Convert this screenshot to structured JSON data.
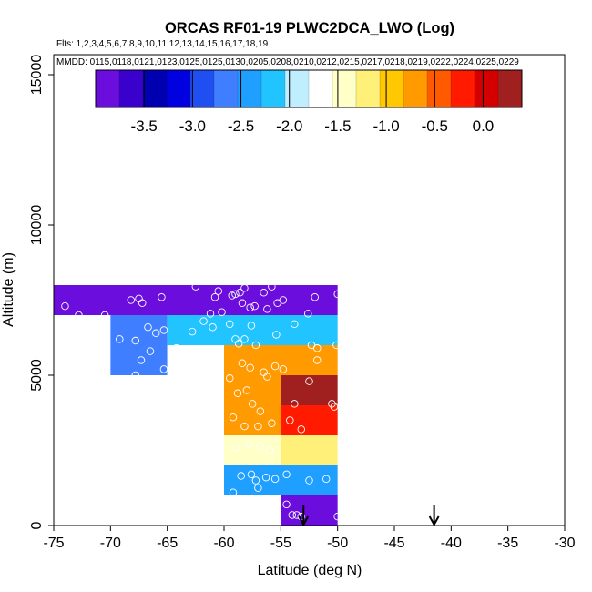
{
  "chart_data": {
    "type": "heatmap",
    "title": "ORCAS RF01-19 PLWC2DCA_LWO (Log)",
    "flights_label": "Flts: 1,2,3,4,5,6,7,8,9,10,11,12,13,14,15,16,17,18,19",
    "dates_label": "MMDD: 0115,0118,0121,0123,0125,0125,0130,0205,0208,0210,0212,0215,0217,0218,0219,0222,0224,0225,0229",
    "xlabel": "Latitude (deg N)",
    "ylabel": "Altitude (m)",
    "xlim": [
      -75,
      -30
    ],
    "ylim": [
      0,
      16000
    ],
    "x_ticks": [
      -75,
      -70,
      -65,
      -60,
      -55,
      -50,
      -45,
      -40,
      -35,
      -30
    ],
    "x_tick_labels": [
      "-75",
      "-70",
      "-65",
      "-60",
      "-55",
      "-50",
      "-45",
      "-40",
      "-35",
      "-30"
    ],
    "y_ticks": [
      0,
      5000,
      10000,
      15000
    ],
    "y_tick_labels": [
      "0",
      "5000",
      "10000",
      "15000"
    ],
    "colorbar": {
      "range": [
        -4.0,
        0.4
      ],
      "ticks": [
        -3.5,
        -3.0,
        -2.5,
        -2.0,
        -1.5,
        -1.0,
        -0.5,
        0.0
      ],
      "tick_labels": [
        "-3.5",
        "-3.0",
        "-2.5",
        "-2.0",
        "-1.5",
        "-1.0",
        "-0.5",
        "0.0"
      ],
      "colors": [
        "#6a0ddd",
        "#3a00cc",
        "#0000b0",
        "#0000e0",
        "#1f4ff0",
        "#3f7fff",
        "#1f9fff",
        "#22c4ff",
        "#bfeeff",
        "#ffffff",
        "#ffffc8",
        "#fff07a",
        "#ffc800",
        "#ff9a00",
        "#ff5a00",
        "#ff1a00",
        "#d40000",
        "#a0201f"
      ]
    },
    "cells": [
      {
        "lat0": -75,
        "lat1": -50,
        "alt0": 7000,
        "alt1": 8000,
        "value": -3.8
      },
      {
        "lat0": -70,
        "lat1": -65,
        "alt0": 5000,
        "alt1": 7000,
        "value": -2.6
      },
      {
        "lat0": -65,
        "lat1": -50,
        "alt0": 6000,
        "alt1": 7000,
        "value": -2.2
      },
      {
        "lat0": -65,
        "lat1": -60,
        "alt0": 2000,
        "alt1": 6000,
        "value": -1.6
      },
      {
        "lat0": -60,
        "lat1": -50,
        "alt0": 5000,
        "alt1": 6000,
        "value": -0.8
      },
      {
        "lat0": -60,
        "lat1": -55,
        "alt0": 3000,
        "alt1": 5000,
        "value": -0.6
      },
      {
        "lat0": -55,
        "lat1": -50,
        "alt0": 4000,
        "alt1": 5000,
        "value": 0.3
      },
      {
        "lat0": -55,
        "lat1": -50,
        "alt0": 3000,
        "alt1": 4000,
        "value": -0.3
      },
      {
        "lat0": -60,
        "lat1": -55,
        "alt0": 2000,
        "alt1": 3000,
        "value": -1.4
      },
      {
        "lat0": -55,
        "lat1": -50,
        "alt0": 2000,
        "alt1": 3000,
        "value": -1.1
      },
      {
        "lat0": -60,
        "lat1": -50,
        "alt0": 1000,
        "alt1": 2000,
        "value": -2.5
      },
      {
        "lat0": -55,
        "lat1": -50,
        "alt0": 0,
        "alt1": 1000,
        "value": -3.9
      }
    ],
    "points": [
      {
        "lat": -74.0,
        "alt": 7300
      },
      {
        "lat": -72.8,
        "alt": 7000
      },
      {
        "lat": -70.5,
        "alt": 7000
      },
      {
        "lat": -68.2,
        "alt": 7500
      },
      {
        "lat": -67.5,
        "alt": 7550
      },
      {
        "lat": -67.2,
        "alt": 7400
      },
      {
        "lat": -65.5,
        "alt": 7600
      },
      {
        "lat": -62.5,
        "alt": 7950
      },
      {
        "lat": -61.2,
        "alt": 7050
      },
      {
        "lat": -60.8,
        "alt": 7600
      },
      {
        "lat": -60.5,
        "alt": 7800
      },
      {
        "lat": -59.3,
        "alt": 7650
      },
      {
        "lat": -59.0,
        "alt": 7700
      },
      {
        "lat": -58.6,
        "alt": 7750
      },
      {
        "lat": -58.4,
        "alt": 7400
      },
      {
        "lat": -57.7,
        "alt": 7250
      },
      {
        "lat": -57.3,
        "alt": 7300
      },
      {
        "lat": -56.5,
        "alt": 7750
      },
      {
        "lat": -56.2,
        "alt": 7200
      },
      {
        "lat": -55.3,
        "alt": 7400
      },
      {
        "lat": -54.8,
        "alt": 7500
      },
      {
        "lat": -52.6,
        "alt": 7050
      },
      {
        "lat": -52.0,
        "alt": 7600
      },
      {
        "lat": -50.0,
        "alt": 7700
      },
      {
        "lat": -55.8,
        "alt": 7950
      },
      {
        "lat": -58.2,
        "alt": 7900
      },
      {
        "lat": -60.2,
        "alt": 7100
      },
      {
        "lat": -69.2,
        "alt": 6200
      },
      {
        "lat": -67.8,
        "alt": 6150
      },
      {
        "lat": -66.7,
        "alt": 6600
      },
      {
        "lat": -66.0,
        "alt": 6400
      },
      {
        "lat": -65.3,
        "alt": 6500
      },
      {
        "lat": -67.3,
        "alt": 5500
      },
      {
        "lat": -66.5,
        "alt": 5800
      },
      {
        "lat": -65.3,
        "alt": 5200
      },
      {
        "lat": -67.8,
        "alt": 5000
      },
      {
        "lat": -62.8,
        "alt": 6450
      },
      {
        "lat": -61.8,
        "alt": 6800
      },
      {
        "lat": -61.0,
        "alt": 6600
      },
      {
        "lat": -59.5,
        "alt": 6700
      },
      {
        "lat": -59.0,
        "alt": 6200
      },
      {
        "lat": -58.7,
        "alt": 6050
      },
      {
        "lat": -58.2,
        "alt": 6200
      },
      {
        "lat": -57.6,
        "alt": 6650
      },
      {
        "lat": -57.2,
        "alt": 6000
      },
      {
        "lat": -55.4,
        "alt": 6350
      },
      {
        "lat": -53.8,
        "alt": 6700
      },
      {
        "lat": -52.3,
        "alt": 6000
      },
      {
        "lat": -51.8,
        "alt": 5900
      },
      {
        "lat": -50.1,
        "alt": 6000
      },
      {
        "lat": -64.2,
        "alt": 5900
      },
      {
        "lat": -61.5,
        "alt": 5800
      },
      {
        "lat": -63.6,
        "alt": 5000
      },
      {
        "lat": -64.0,
        "alt": 4500
      },
      {
        "lat": -62.2,
        "alt": 4300
      },
      {
        "lat": -60.8,
        "alt": 3300
      },
      {
        "lat": -63.5,
        "alt": 3800
      },
      {
        "lat": -62.8,
        "alt": 2500
      },
      {
        "lat": -61.5,
        "alt": 2600
      },
      {
        "lat": -64.8,
        "alt": 3300
      },
      {
        "lat": -61.8,
        "alt": 3050
      },
      {
        "lat": -63.0,
        "alt": 4600
      },
      {
        "lat": -61.2,
        "alt": 4550
      },
      {
        "lat": -58.4,
        "alt": 5400
      },
      {
        "lat": -57.7,
        "alt": 5250
      },
      {
        "lat": -56.5,
        "alt": 5100
      },
      {
        "lat": -56.2,
        "alt": 4950
      },
      {
        "lat": -55.5,
        "alt": 5300
      },
      {
        "lat": -54.8,
        "alt": 5200
      },
      {
        "lat": -59.5,
        "alt": 4900
      },
      {
        "lat": -58.8,
        "alt": 4400
      },
      {
        "lat": -58.0,
        "alt": 4500
      },
      {
        "lat": -57.5,
        "alt": 4050
      },
      {
        "lat": -56.8,
        "alt": 3800
      },
      {
        "lat": -59.2,
        "alt": 3600
      },
      {
        "lat": -58.2,
        "alt": 3300
      },
      {
        "lat": -57.0,
        "alt": 3300
      },
      {
        "lat": -55.8,
        "alt": 3400
      },
      {
        "lat": -54.2,
        "alt": 3500
      },
      {
        "lat": -53.2,
        "alt": 3200
      },
      {
        "lat": -52.5,
        "alt": 4800
      },
      {
        "lat": -51.8,
        "alt": 5500
      },
      {
        "lat": -50.5,
        "alt": 4050
      },
      {
        "lat": -50.3,
        "alt": 3950
      },
      {
        "lat": -53.8,
        "alt": 4050
      },
      {
        "lat": -59.0,
        "alt": 2600
      },
      {
        "lat": -57.8,
        "alt": 2700
      },
      {
        "lat": -56.8,
        "alt": 2650
      },
      {
        "lat": -56.0,
        "alt": 2500
      },
      {
        "lat": -58.5,
        "alt": 1650
      },
      {
        "lat": -57.6,
        "alt": 1700
      },
      {
        "lat": -57.2,
        "alt": 1500
      },
      {
        "lat": -56.3,
        "alt": 1600
      },
      {
        "lat": -55.5,
        "alt": 1550
      },
      {
        "lat": -54.5,
        "alt": 1700
      },
      {
        "lat": -52.5,
        "alt": 1500
      },
      {
        "lat": -51.0,
        "alt": 1550
      },
      {
        "lat": -57.0,
        "alt": 1250
      },
      {
        "lat": -59.2,
        "alt": 1100
      },
      {
        "lat": -54.0,
        "alt": 350
      },
      {
        "lat": -53.6,
        "alt": 350
      },
      {
        "lat": -53.2,
        "alt": 300
      },
      {
        "lat": -54.5,
        "alt": 700
      },
      {
        "lat": -50.0,
        "alt": 300
      }
    ],
    "arrows": [
      {
        "lat": -53.0,
        "label": "down-arrow"
      },
      {
        "lat": -41.5,
        "label": "down-arrow"
      }
    ]
  }
}
